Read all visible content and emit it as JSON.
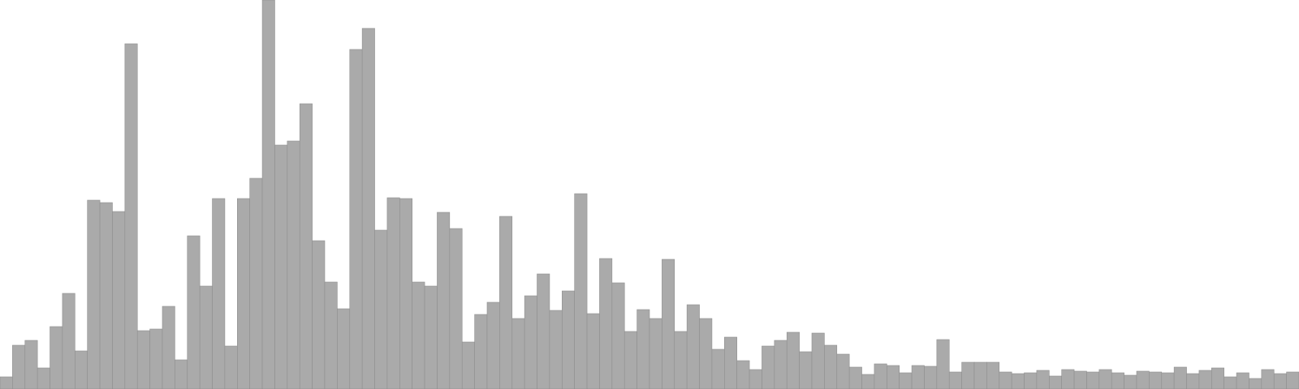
{
  "chart_data": {
    "type": "bar",
    "title": "",
    "xlabel": "",
    "ylabel": "",
    "bar_color": "#aaaaaa",
    "bar_stroke": "#8f8f8f",
    "background": "#ffffff",
    "grid": false,
    "legend": "none",
    "ylim": [
      0,
      480
    ],
    "values": [
      15,
      54,
      60,
      26,
      77,
      118,
      47,
      233,
      230,
      219,
      426,
      72,
      74,
      102,
      36,
      189,
      127,
      235,
      53,
      235,
      260,
      480,
      301,
      306,
      352,
      183,
      132,
      99,
      419,
      445,
      196,
      236,
      235,
      132,
      127,
      218,
      198,
      58,
      92,
      107,
      213,
      87,
      115,
      142,
      97,
      121,
      241,
      93,
      161,
      131,
      71,
      98,
      87,
      160,
      71,
      104,
      87,
      49,
      64,
      35,
      24,
      53,
      60,
      70,
      46,
      69,
      54,
      43,
      27,
      18,
      31,
      29,
      20,
      29,
      28,
      61,
      21,
      33,
      33,
      33,
      21,
      19,
      20,
      23,
      16,
      24,
      22,
      21,
      24,
      20,
      17,
      22,
      21,
      20,
      27,
      19,
      23,
      26,
      15,
      20,
      13,
      24,
      19,
      21
    ]
  }
}
